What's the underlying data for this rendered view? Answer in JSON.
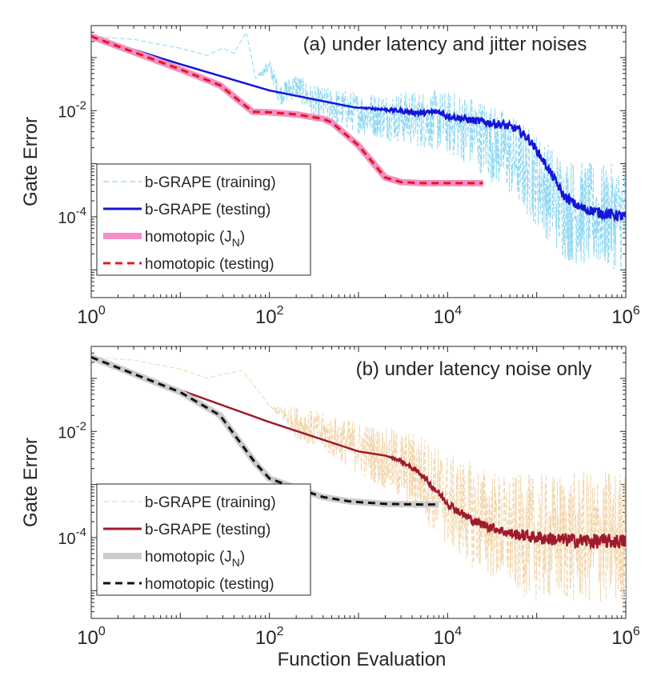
{
  "xlabel": "Function Evaluation",
  "chart_data": [
    {
      "type": "line",
      "title": "(a) under latency and jitter noises",
      "ylabel": "Gate Error",
      "xscale": "log",
      "yscale": "log",
      "xlim": [
        1,
        1000000
      ],
      "ylim": [
        3e-06,
        0.4
      ],
      "xticks": [
        {
          "value": 1,
          "base": "10",
          "exp": "0"
        },
        {
          "value": 100,
          "base": "10",
          "exp": "2"
        },
        {
          "value": 10000,
          "base": "10",
          "exp": "4"
        },
        {
          "value": 1000000,
          "base": "10",
          "exp": "6"
        }
      ],
      "yticks": [
        {
          "value": 0.01,
          "base": "10",
          "exp": "-2"
        },
        {
          "value": 0.0001,
          "base": "10",
          "exp": "-4"
        }
      ],
      "legend_position": "bottom-left",
      "series": [
        {
          "name": "b-GRAPE (training)",
          "legend_label": "b-GRAPE (training)",
          "color": "#8fd8f2",
          "style": "dashed-thin",
          "x": [
            1,
            3,
            10,
            20,
            30,
            40,
            55,
            70,
            100,
            130,
            200,
            300,
            500,
            1000,
            2000,
            5000,
            10000,
            20000,
            50000,
            100000,
            150000,
            200000,
            300000,
            500000,
            1000000
          ],
          "y": [
            0.25,
            0.22,
            0.15,
            0.11,
            0.15,
            0.12,
            0.3,
            0.04,
            0.07,
            0.02,
            0.03,
            0.015,
            0.012,
            0.009,
            0.008,
            0.007,
            0.006,
            0.004,
            0.0015,
            0.0005,
            0.00025,
            0.00015,
            0.00012,
            0.0001,
            0.0001
          ],
          "noise_spread": [
            0,
            0,
            0,
            0,
            0,
            0,
            0,
            0,
            0.15,
            0.2,
            0.25,
            0.3,
            0.35,
            0.4,
            0.45,
            0.55,
            0.6,
            0.7,
            0.8,
            0.9,
            0.95,
            1.0,
            1.0,
            1.0,
            1.0
          ]
        },
        {
          "name": "b-GRAPE (testing)",
          "legend_label": "b-GRAPE (testing)",
          "color": "#1515d6",
          "style": "solid",
          "x": [
            1,
            10,
            100,
            900,
            2000,
            5000,
            8000,
            10000,
            20000,
            40000,
            60000,
            80000,
            100000,
            150000,
            200000,
            300000,
            500000,
            1000000
          ],
          "y": [
            0.25,
            0.075,
            0.024,
            0.0115,
            0.0105,
            0.009,
            0.0095,
            0.008,
            0.0065,
            0.0055,
            0.0045,
            0.003,
            0.0018,
            0.0006,
            0.00025,
            0.00015,
            0.00012,
            0.0001
          ],
          "jitter_spread": [
            0,
            0,
            0,
            0,
            0.03,
            0.05,
            0.05,
            0.06,
            0.07,
            0.08,
            0.08,
            0.08,
            0.08,
            0.08,
            0.09,
            0.09,
            0.1,
            0.1
          ]
        },
        {
          "name": "homotopic (J_N)",
          "legend_label": "homotopic (J",
          "legend_sub": "N",
          "legend_tail": ")",
          "color": "#f28fc3",
          "style": "thick",
          "x": [
            1,
            10,
            28,
            65,
            100,
            200,
            400,
            500,
            1000,
            2000,
            3000,
            5000,
            10000,
            25000
          ],
          "y": [
            0.25,
            0.06,
            0.03,
            0.0095,
            0.0093,
            0.0085,
            0.007,
            0.006,
            0.0022,
            0.00055,
            0.00045,
            0.00043,
            0.00043,
            0.00043
          ]
        },
        {
          "name": "homotopic (testing)",
          "legend_label": "homotopic (testing)",
          "color": "#e8141e",
          "style": "dashed",
          "x": [
            1,
            10,
            28,
            65,
            100,
            200,
            400,
            500,
            1000,
            2000,
            3000,
            5000,
            10000,
            25000
          ],
          "y": [
            0.25,
            0.06,
            0.03,
            0.0095,
            0.0093,
            0.0085,
            0.007,
            0.006,
            0.0022,
            0.00055,
            0.00045,
            0.00043,
            0.00043,
            0.00043
          ]
        }
      ]
    },
    {
      "type": "line",
      "title": "(b) under latency noise only",
      "ylabel": "Gate Error",
      "xscale": "log",
      "yscale": "log",
      "xlim": [
        1,
        1000000
      ],
      "ylim": [
        3e-06,
        0.4
      ],
      "xticks": [
        {
          "value": 1,
          "base": "10",
          "exp": "0"
        },
        {
          "value": 100,
          "base": "10",
          "exp": "2"
        },
        {
          "value": 10000,
          "base": "10",
          "exp": "4"
        },
        {
          "value": 1000000,
          "base": "10",
          "exp": "6"
        }
      ],
      "yticks": [
        {
          "value": 0.01,
          "base": "10",
          "exp": "-2"
        },
        {
          "value": 0.0001,
          "base": "10",
          "exp": "-4"
        }
      ],
      "legend_position": "bottom-left",
      "series": [
        {
          "name": "b-GRAPE (training)",
          "legend_label": "b-GRAPE (training)",
          "color": "#f2d6ac",
          "style": "dashed-thin",
          "x": [
            1,
            3,
            10,
            20,
            30,
            50,
            80,
            100,
            200,
            500,
            1000,
            2000,
            5000,
            10000,
            20000,
            50000,
            100000,
            1000000
          ],
          "y": [
            0.25,
            0.22,
            0.15,
            0.1,
            0.12,
            0.14,
            0.05,
            0.03,
            0.015,
            0.008,
            0.005,
            0.003,
            0.0015,
            0.0005,
            0.00025,
            0.00012,
            0.0001,
            0.0001
          ],
          "noise_spread": [
            0,
            0,
            0,
            0,
            0,
            0,
            0,
            0,
            0.3,
            0.4,
            0.5,
            0.6,
            0.8,
            0.9,
            1.0,
            1.1,
            1.2,
            1.3
          ]
        },
        {
          "name": "b-GRAPE (testing)",
          "legend_label": "b-GRAPE (testing)",
          "color": "#a01a2e",
          "style": "solid",
          "x": [
            1,
            10,
            100,
            1000,
            2000,
            3000,
            5000,
            10000,
            13000,
            20000,
            50000,
            100000,
            200000,
            500000,
            1000000
          ],
          "y": [
            0.25,
            0.06,
            0.015,
            0.0042,
            0.0035,
            0.0028,
            0.0016,
            0.00045,
            0.00032,
            0.0002,
            0.00012,
            0.0001,
            9e-05,
            8.5e-05,
            8.5e-05
          ],
          "jitter_spread": [
            0,
            0,
            0,
            0,
            0,
            0.03,
            0.05,
            0.08,
            0.08,
            0.08,
            0.1,
            0.12,
            0.13,
            0.14,
            0.14
          ]
        },
        {
          "name": "homotopic (J_N)",
          "legend_label": "homotopic (J",
          "legend_sub": "N",
          "legend_tail": ")",
          "color": "#cccccc",
          "style": "thick",
          "x": [
            1,
            10,
            28,
            70,
            100,
            200,
            400,
            800,
            2000,
            5000,
            8000
          ],
          "y": [
            0.25,
            0.055,
            0.02,
            0.0025,
            0.0013,
            0.00085,
            0.00058,
            0.00048,
            0.00043,
            0.00042,
            0.00042
          ]
        },
        {
          "name": "homotopic (testing)",
          "legend_label": "homotopic (testing)",
          "color": "#111111",
          "style": "dashed",
          "x": [
            1,
            10,
            28,
            70,
            100,
            200,
            400,
            800,
            2000,
            5000,
            8000
          ],
          "y": [
            0.25,
            0.055,
            0.02,
            0.0025,
            0.0013,
            0.00085,
            0.00058,
            0.00048,
            0.00043,
            0.00042,
            0.00042
          ]
        }
      ]
    }
  ]
}
